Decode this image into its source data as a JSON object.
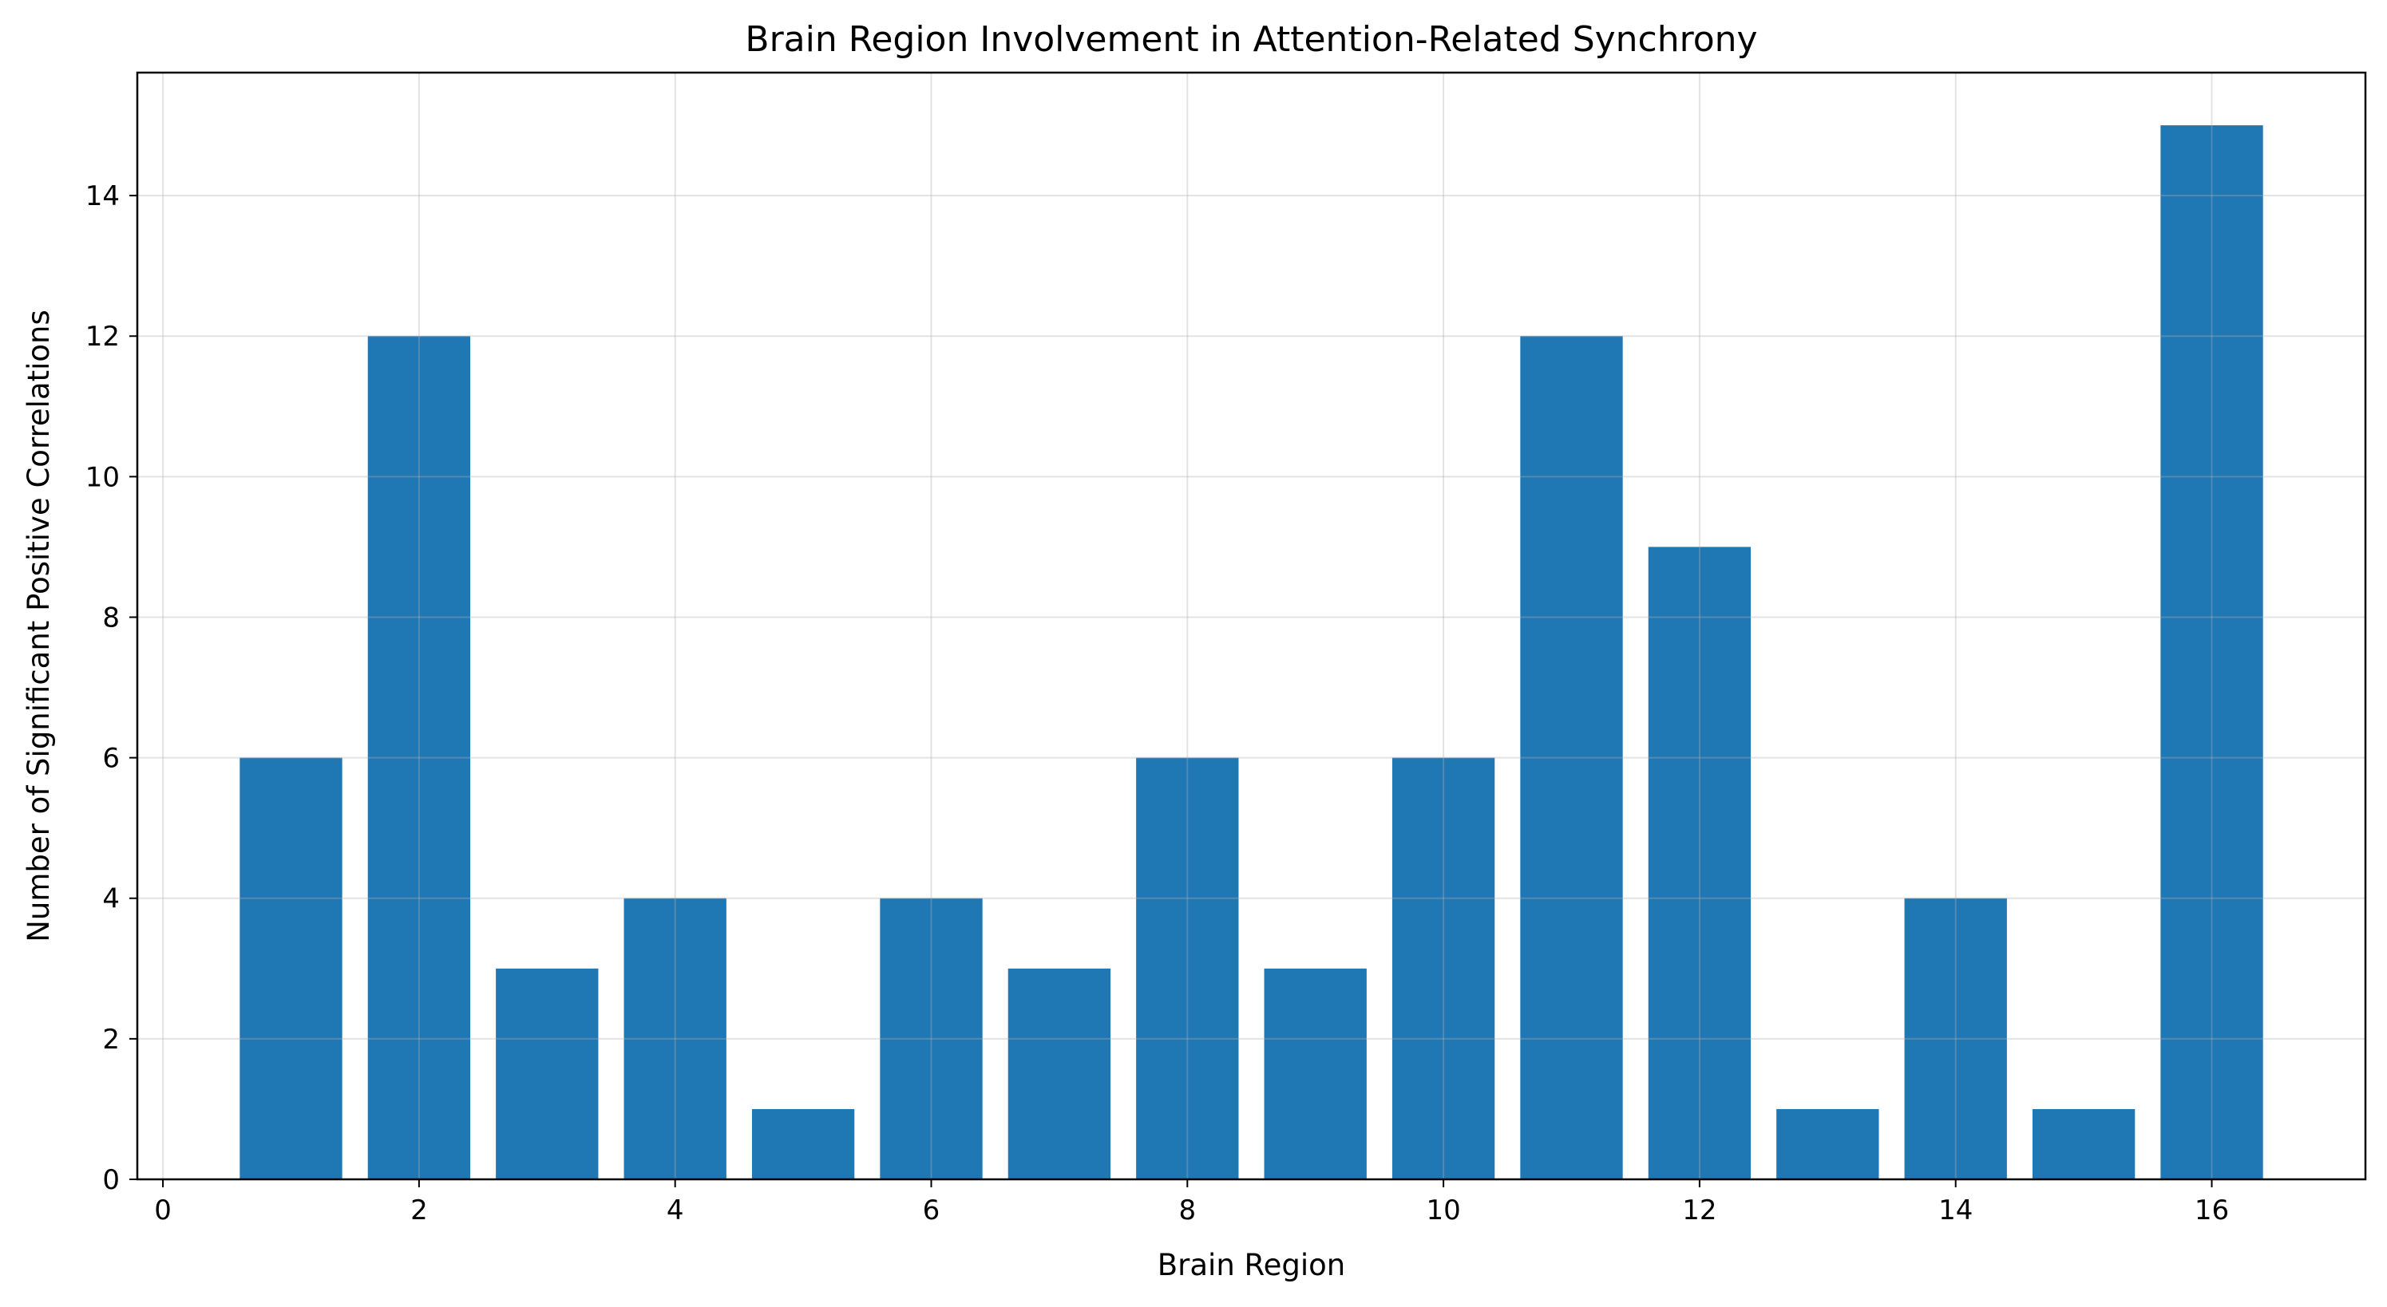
{
  "chart_data": {
    "type": "bar",
    "title": "Brain Region Involvement in Attention-Related Synchrony",
    "xlabel": "Brain Region",
    "ylabel": "Number of Significant Positive Correlations",
    "x": [
      1,
      2,
      3,
      4,
      5,
      6,
      7,
      8,
      9,
      10,
      11,
      12,
      13,
      14,
      15,
      16
    ],
    "values": [
      6,
      12,
      3,
      4,
      1,
      4,
      3,
      6,
      3,
      6,
      12,
      9,
      1,
      4,
      1,
      15
    ],
    "xlim": [
      -0.2,
      17.2
    ],
    "ylim": [
      0,
      15.75
    ],
    "xticks": [
      0,
      2,
      4,
      6,
      8,
      10,
      12,
      14,
      16
    ],
    "yticks": [
      0,
      2,
      4,
      6,
      8,
      10,
      12,
      14
    ],
    "xtick_labels": [
      "0",
      "2",
      "4",
      "6",
      "8",
      "10",
      "12",
      "14",
      "16"
    ],
    "ytick_labels": [
      "0",
      "2",
      "4",
      "6",
      "8",
      "10",
      "12",
      "14"
    ],
    "grid": true,
    "bar_color": "#1f77b4",
    "grid_color": "#e6e6e6",
    "axis_color": "#000000"
  }
}
